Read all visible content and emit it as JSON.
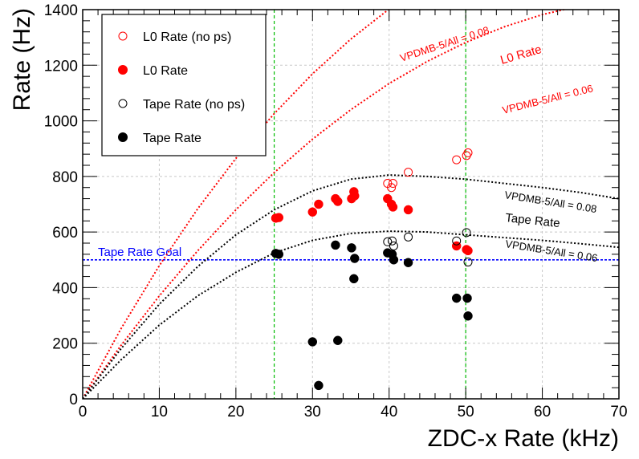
{
  "chart_data": {
    "type": "scatter",
    "title": "",
    "xlabel": "ZDC-x Rate (kHz)",
    "ylabel": "Rate (Hz)",
    "xlim": [
      0,
      70
    ],
    "ylim": [
      0,
      1400
    ],
    "x_ticks": [
      0,
      10,
      20,
      30,
      40,
      50,
      60,
      70
    ],
    "y_ticks": [
      0,
      200,
      400,
      600,
      800,
      1000,
      1200,
      1400
    ],
    "grid": true,
    "legend_placement": "top-left",
    "colors": {
      "red": "#ff0000",
      "black": "#000000",
      "blue": "#0000ff",
      "green": "#00bb00"
    },
    "series": [
      {
        "name": "L0 Rate (no ps)",
        "marker": "open-circle",
        "color": "#ff0000",
        "points": [
          [
            39.8,
            775
          ],
          [
            40.3,
            760
          ],
          [
            40.5,
            775
          ],
          [
            42.5,
            815
          ],
          [
            48.8,
            860
          ],
          [
            50.1,
            875
          ],
          [
            50.3,
            885
          ]
        ]
      },
      {
        "name": "L0 Rate",
        "marker": "filled-circle",
        "color": "#ff0000",
        "points": [
          [
            25.2,
            650
          ],
          [
            25.6,
            652
          ],
          [
            30.0,
            672
          ],
          [
            30.8,
            700
          ],
          [
            33.0,
            720
          ],
          [
            33.3,
            710
          ],
          [
            35.1,
            720
          ],
          [
            35.4,
            745
          ],
          [
            35.5,
            730
          ],
          [
            39.8,
            720
          ],
          [
            40.3,
            700
          ],
          [
            40.5,
            690
          ],
          [
            42.5,
            680
          ],
          [
            48.8,
            550
          ],
          [
            50.1,
            537
          ],
          [
            50.3,
            533
          ]
        ]
      },
      {
        "name": "Tape Rate (no ps)",
        "marker": "open-circle",
        "color": "#000000",
        "points": [
          [
            39.8,
            565
          ],
          [
            40.4,
            568
          ],
          [
            40.6,
            550
          ],
          [
            42.5,
            582
          ],
          [
            48.8,
            568
          ],
          [
            50.1,
            598
          ],
          [
            50.3,
            492
          ]
        ]
      },
      {
        "name": "Tape Rate",
        "marker": "filled-circle",
        "color": "#000000",
        "points": [
          [
            25.2,
            523
          ],
          [
            25.6,
            520
          ],
          [
            30.0,
            205
          ],
          [
            30.8,
            48
          ],
          [
            33.0,
            553
          ],
          [
            33.3,
            210
          ],
          [
            35.1,
            543
          ],
          [
            35.4,
            432
          ],
          [
            35.5,
            505
          ],
          [
            39.8,
            525
          ],
          [
            40.4,
            520
          ],
          [
            40.6,
            500
          ],
          [
            42.5,
            490
          ],
          [
            48.8,
            362
          ],
          [
            50.2,
            362
          ],
          [
            50.3,
            298
          ]
        ]
      }
    ],
    "curves": [
      {
        "label": "VPDMB-5/All = 0.08",
        "color": "#ff0000",
        "points": [
          [
            0,
            0
          ],
          [
            5,
            252
          ],
          [
            10,
            479
          ],
          [
            15,
            683
          ],
          [
            20,
            865
          ],
          [
            25,
            1026
          ],
          [
            30,
            1169
          ],
          [
            35,
            1294
          ],
          [
            40,
            1402
          ]
        ]
      },
      {
        "label": "VPDMB-5/All = 0.06",
        "color": "#ff0000",
        "points": [
          [
            0,
            0
          ],
          [
            5,
            192
          ],
          [
            10,
            370
          ],
          [
            15,
            532
          ],
          [
            20,
            680
          ],
          [
            25,
            814
          ],
          [
            30,
            934
          ],
          [
            35,
            1040
          ],
          [
            40,
            1134
          ],
          [
            45,
            1214
          ],
          [
            50,
            1282
          ],
          [
            55,
            1338
          ],
          [
            60,
            1382
          ],
          [
            65,
            1414
          ],
          [
            70,
            1435
          ]
        ]
      },
      {
        "label": "VPDMB-5/All = 0.08",
        "color": "#000000",
        "points": [
          [
            0,
            0
          ],
          [
            5,
            180
          ],
          [
            10,
            340
          ],
          [
            15,
            475
          ],
          [
            20,
            590
          ],
          [
            25,
            680
          ],
          [
            30,
            748
          ],
          [
            35,
            790
          ],
          [
            40,
            805
          ],
          [
            45,
            800
          ],
          [
            50,
            790
          ],
          [
            55,
            775
          ],
          [
            60,
            760
          ],
          [
            65,
            742
          ],
          [
            70,
            720
          ]
        ]
      },
      {
        "label": "VPDMB-5/All = 0.06",
        "color": "#000000",
        "points": [
          [
            0,
            0
          ],
          [
            5,
            140
          ],
          [
            10,
            265
          ],
          [
            15,
            370
          ],
          [
            20,
            455
          ],
          [
            25,
            525
          ],
          [
            30,
            570
          ],
          [
            35,
            595
          ],
          [
            40,
            603
          ],
          [
            45,
            600
          ],
          [
            50,
            590
          ],
          [
            55,
            580
          ],
          [
            60,
            570
          ],
          [
            65,
            558
          ],
          [
            70,
            545
          ]
        ]
      }
    ],
    "reference_lines": {
      "horizontal": [
        {
          "y": 500,
          "label": "Tape Rate Goal",
          "color": "#0000ff"
        }
      ],
      "vertical": [
        {
          "x": 25,
          "color": "#00bb00"
        },
        {
          "x": 50,
          "color": "#00bb00"
        }
      ]
    },
    "annotations": [
      {
        "text": "VPDMB-5/All = 0.08",
        "color": "#ff0000"
      },
      {
        "text": "L0 Rate",
        "color": "#ff0000"
      },
      {
        "text": "VPDMB-5/All = 0.06",
        "color": "#ff0000"
      },
      {
        "text": "VPDMB-5/All = 0.08",
        "color": "#000000"
      },
      {
        "text": "Tape Rate",
        "color": "#000000"
      },
      {
        "text": "VPDMB-5/All = 0.06",
        "color": "#000000"
      }
    ]
  }
}
